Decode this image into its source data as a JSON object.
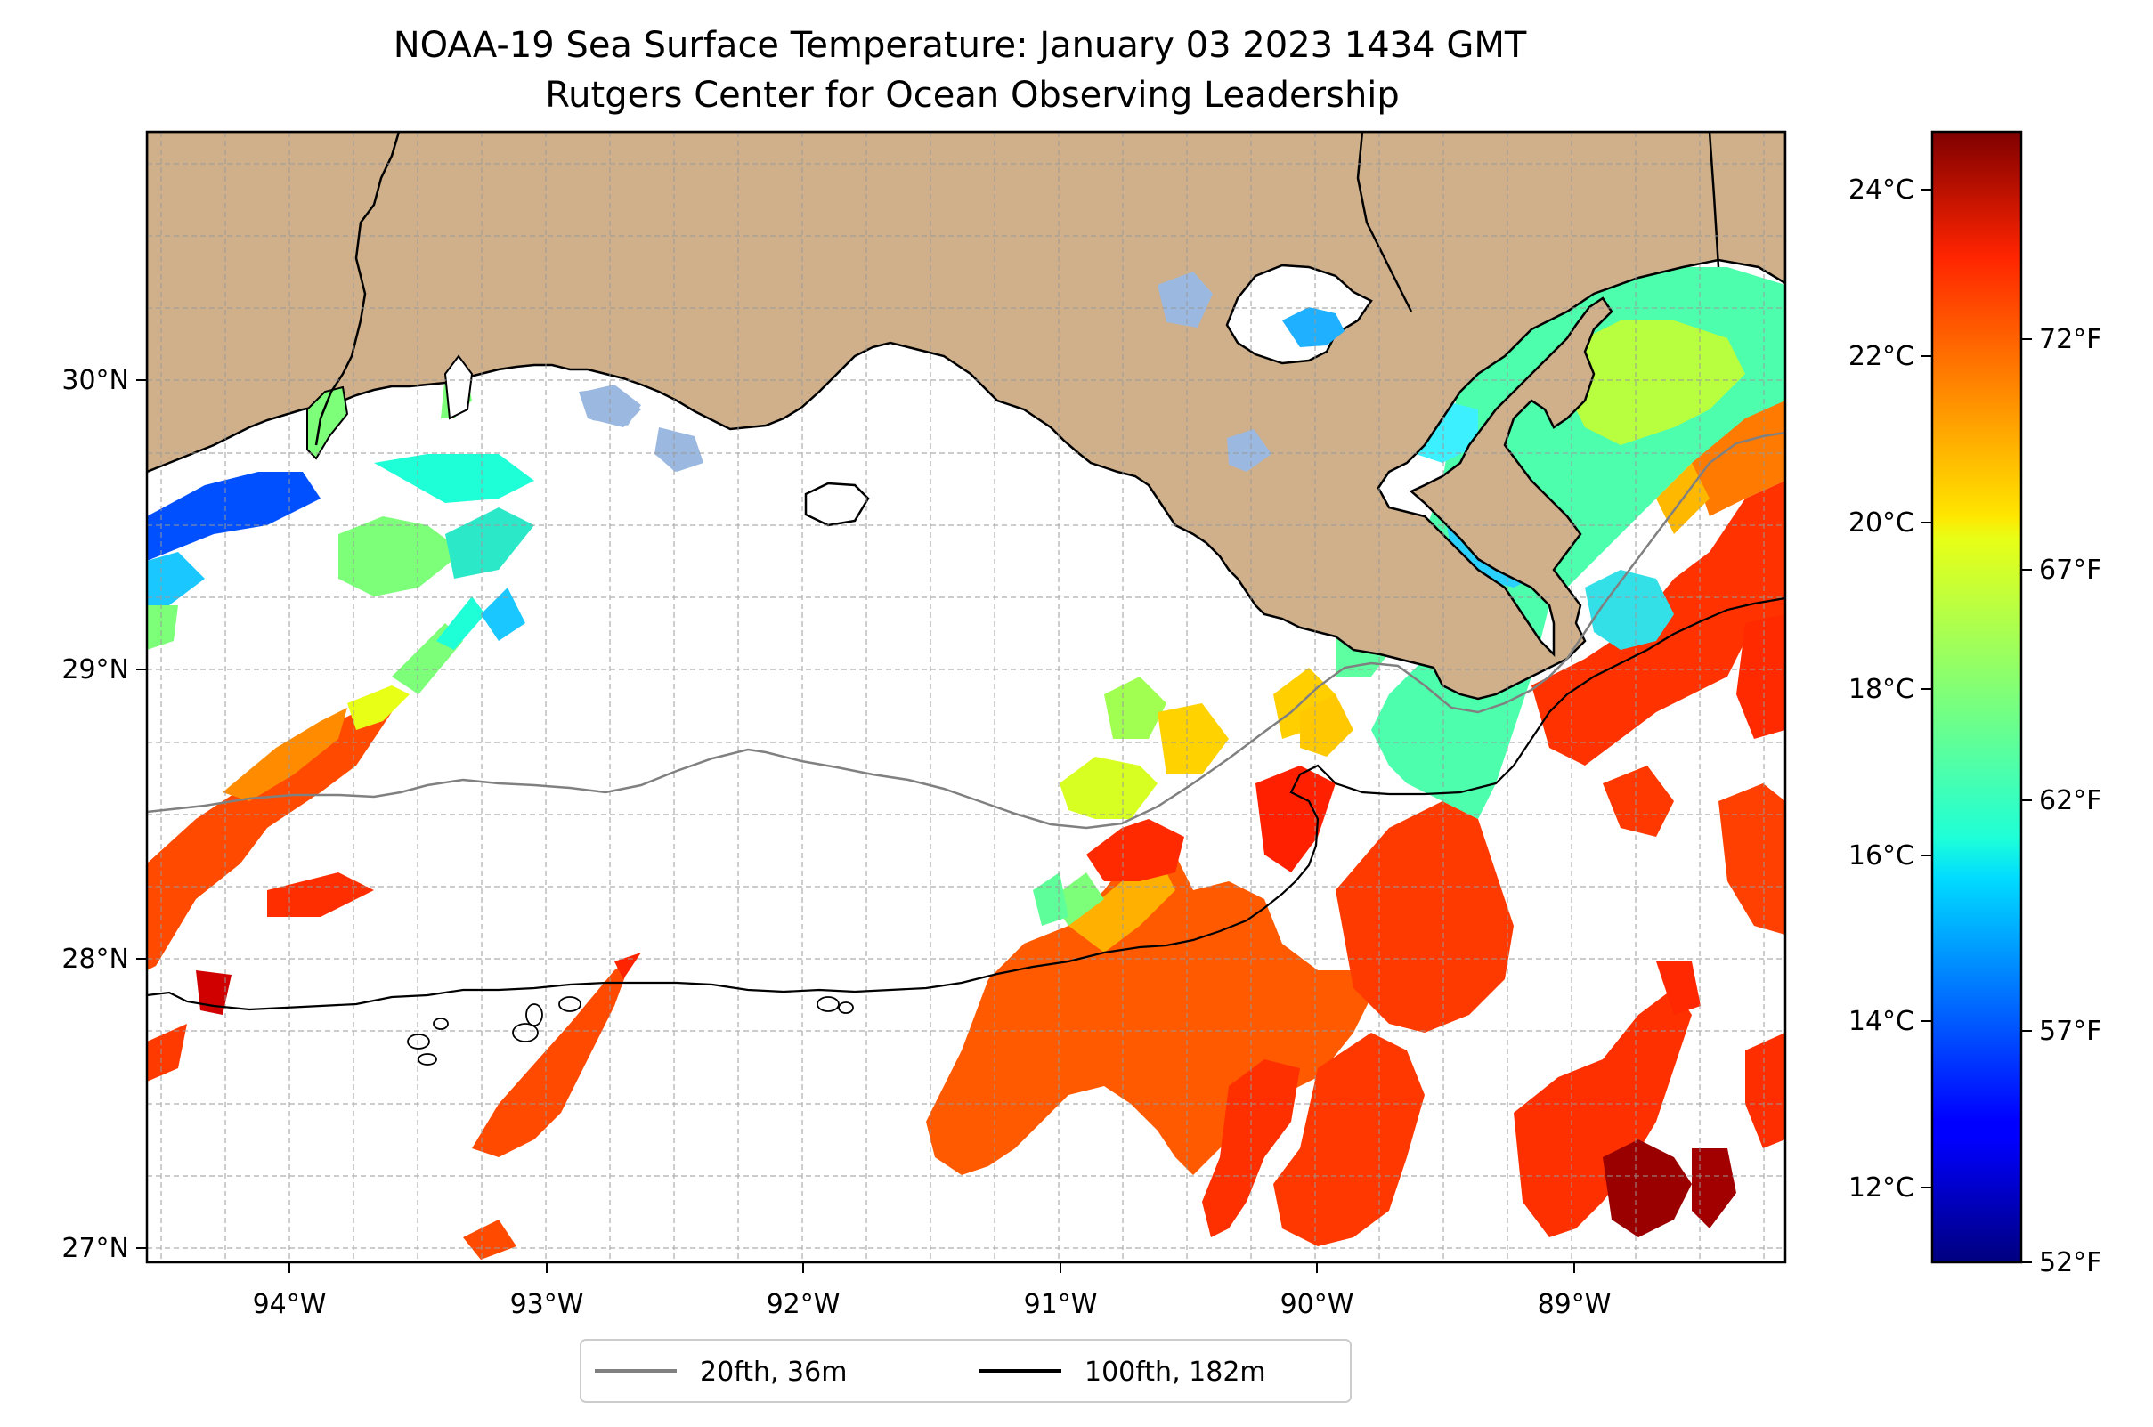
{
  "figure": {
    "title": "NOAA-19 Sea Surface Temperature: January 03 2023 1434 GMT",
    "subtitle": "Rutgers Center for Ocean Observing Leadership"
  },
  "map": {
    "lon_range": [
      -94.55,
      -88.2
    ],
    "lat_range": [
      26.95,
      30.85
    ],
    "lon_ticks": [
      {
        "value": -94,
        "label": "94°W"
      },
      {
        "value": -93,
        "label": "93°W"
      },
      {
        "value": -92,
        "label": "92°W"
      },
      {
        "value": -91,
        "label": "91°W"
      },
      {
        "value": -90,
        "label": "90°W"
      },
      {
        "value": -89,
        "label": "89°W"
      }
    ],
    "lat_ticks": [
      {
        "value": 27,
        "label": "27°N"
      },
      {
        "value": 28,
        "label": "28°N"
      },
      {
        "value": 29,
        "label": "29°N"
      },
      {
        "value": 30,
        "label": "30°N"
      }
    ],
    "grid": true,
    "land_color": "#cfb08a",
    "coastline_color": "#000000"
  },
  "colorbar": {
    "colormap": "jet",
    "celsius_range": [
      11.1,
      24.7
    ],
    "celsius_ticks": [
      {
        "value": 12,
        "label": "12°C"
      },
      {
        "value": 14,
        "label": "14°C"
      },
      {
        "value": 16,
        "label": "16°C"
      },
      {
        "value": 18,
        "label": "18°C"
      },
      {
        "value": 20,
        "label": "20°C"
      },
      {
        "value": 22,
        "label": "22°C"
      },
      {
        "value": 24,
        "label": "24°C"
      }
    ],
    "fahrenheit_ticks": [
      {
        "value": 52,
        "label": "52°F"
      },
      {
        "value": 57,
        "label": "57°F"
      },
      {
        "value": 62,
        "label": "62°F"
      },
      {
        "value": 67,
        "label": "67°F"
      },
      {
        "value": 72,
        "label": "72°F"
      }
    ]
  },
  "legend": {
    "placement": "bottom-center",
    "items": [
      {
        "label": "20fth, 36m",
        "color": "#808080"
      },
      {
        "label": "100fth, 182m",
        "color": "#000000"
      }
    ]
  }
}
